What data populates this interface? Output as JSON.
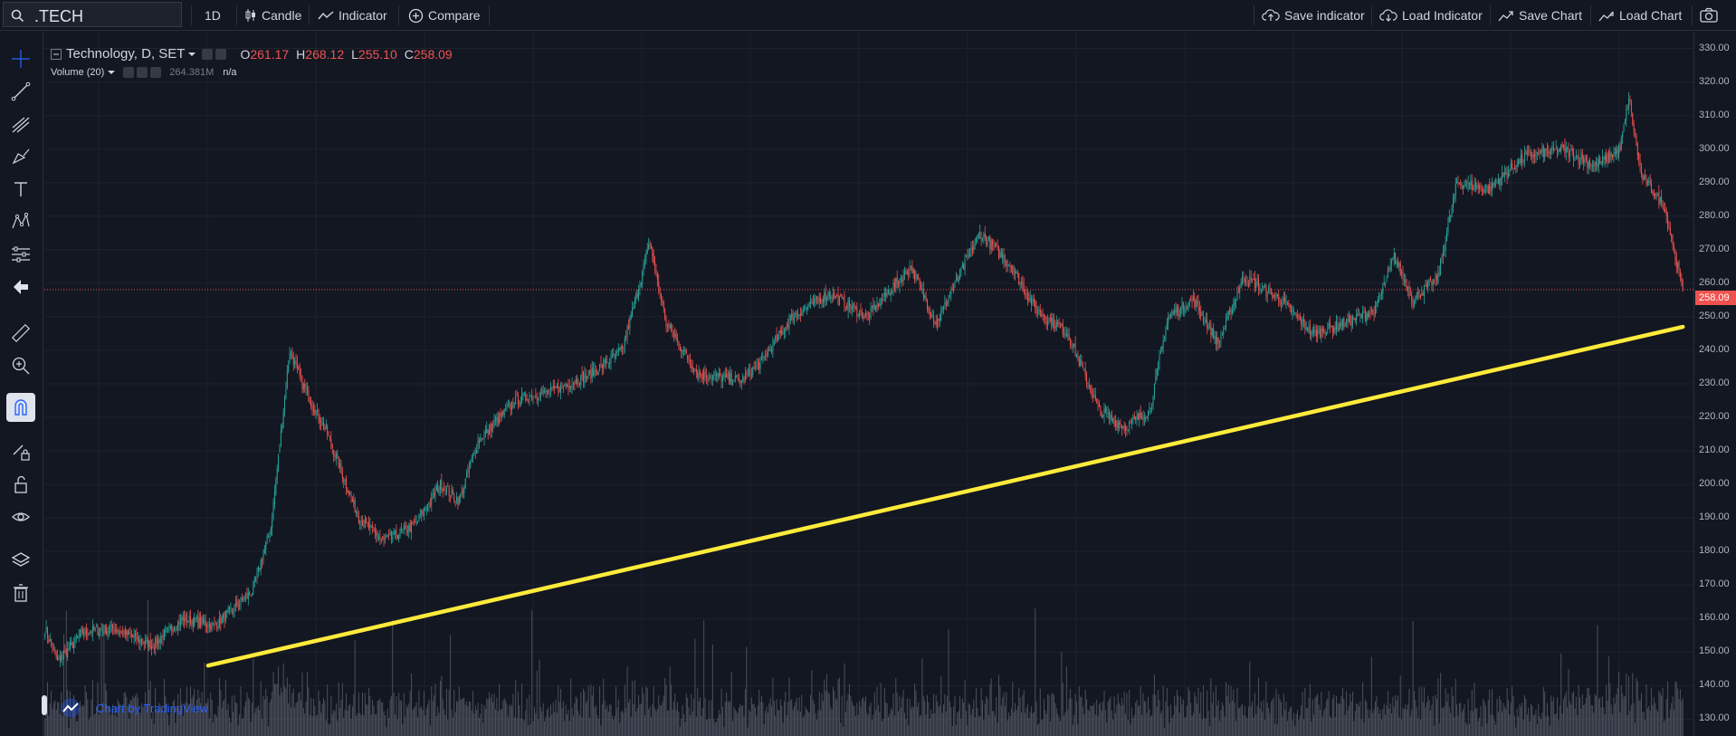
{
  "toolbar": {
    "symbol": ".TECH",
    "interval": "1D",
    "chart_type": "Candle",
    "indicator": "Indicator",
    "compare": "Compare",
    "save_indicator": "Save indicator",
    "load_indicator": "Load Indicator",
    "save_chart": "Save Chart",
    "load_chart": "Load Chart"
  },
  "legend": {
    "title": "Technology, D, SET",
    "open_label": "O",
    "open": "261.17",
    "high_label": "H",
    "high": "268.12",
    "low_label": "L",
    "low": "255.10",
    "close_label": "C",
    "close": "258.09",
    "volume_label": "Volume (20)",
    "volume_value": "264.381M",
    "volume_ma": "n/a"
  },
  "credit": "Chart by TradingView",
  "colors": {
    "background": "#131722",
    "up": "#26a69a",
    "down": "#ef5350",
    "trendline": "#ffeb3b",
    "price_line": "#ef5350"
  },
  "chart_data": {
    "type": "candlestick",
    "symbol": "Technology",
    "interval": "D",
    "exchange": "SET",
    "last_price": 258.09,
    "ylim": [
      125,
      335
    ],
    "yticks": [
      130,
      140,
      150,
      160,
      170,
      180,
      190,
      200,
      210,
      220,
      230,
      240,
      250,
      260,
      270,
      280,
      290,
      300,
      310,
      320,
      330
    ],
    "close_path": [
      {
        "t": 0,
        "c": 157
      },
      {
        "t": 10,
        "c": 147
      },
      {
        "t": 30,
        "c": 156
      },
      {
        "t": 55,
        "c": 157
      },
      {
        "t": 85,
        "c": 152
      },
      {
        "t": 110,
        "c": 160
      },
      {
        "t": 135,
        "c": 158
      },
      {
        "t": 165,
        "c": 168
      },
      {
        "t": 180,
        "c": 187
      },
      {
        "t": 195,
        "c": 240
      },
      {
        "t": 205,
        "c": 230
      },
      {
        "t": 225,
        "c": 215
      },
      {
        "t": 250,
        "c": 190
      },
      {
        "t": 270,
        "c": 183
      },
      {
        "t": 295,
        "c": 188
      },
      {
        "t": 315,
        "c": 200
      },
      {
        "t": 330,
        "c": 195
      },
      {
        "t": 345,
        "c": 213
      },
      {
        "t": 375,
        "c": 225
      },
      {
        "t": 405,
        "c": 228
      },
      {
        "t": 435,
        "c": 233
      },
      {
        "t": 460,
        "c": 240
      },
      {
        "t": 482,
        "c": 272
      },
      {
        "t": 495,
        "c": 248
      },
      {
        "t": 520,
        "c": 233
      },
      {
        "t": 555,
        "c": 231
      },
      {
        "t": 570,
        "c": 236
      },
      {
        "t": 595,
        "c": 250
      },
      {
        "t": 625,
        "c": 257
      },
      {
        "t": 655,
        "c": 250
      },
      {
        "t": 690,
        "c": 265
      },
      {
        "t": 710,
        "c": 248
      },
      {
        "t": 745,
        "c": 275
      },
      {
        "t": 770,
        "c": 265
      },
      {
        "t": 790,
        "c": 252
      },
      {
        "t": 815,
        "c": 245
      },
      {
        "t": 840,
        "c": 222
      },
      {
        "t": 860,
        "c": 217
      },
      {
        "t": 880,
        "c": 222
      },
      {
        "t": 895,
        "c": 250
      },
      {
        "t": 915,
        "c": 255
      },
      {
        "t": 935,
        "c": 242
      },
      {
        "t": 955,
        "c": 262
      },
      {
        "t": 985,
        "c": 255
      },
      {
        "t": 1010,
        "c": 245
      },
      {
        "t": 1035,
        "c": 248
      },
      {
        "t": 1060,
        "c": 252
      },
      {
        "t": 1075,
        "c": 268
      },
      {
        "t": 1090,
        "c": 255
      },
      {
        "t": 1110,
        "c": 262
      },
      {
        "t": 1125,
        "c": 290
      },
      {
        "t": 1150,
        "c": 288
      },
      {
        "t": 1180,
        "c": 298
      },
      {
        "t": 1210,
        "c": 300
      },
      {
        "t": 1235,
        "c": 295
      },
      {
        "t": 1255,
        "c": 300
      },
      {
        "t": 1262,
        "c": 315
      },
      {
        "t": 1272,
        "c": 292
      },
      {
        "t": 1290,
        "c": 283
      },
      {
        "t": 1305,
        "c": 258.09
      }
    ],
    "trendline": {
      "start": {
        "t": 130,
        "price": 146
      },
      "end": {
        "t": 1305,
        "price": 247
      },
      "color": "#ffeb3b"
    },
    "price_line": 258.09,
    "volume_series_label": "Volume (20)"
  }
}
